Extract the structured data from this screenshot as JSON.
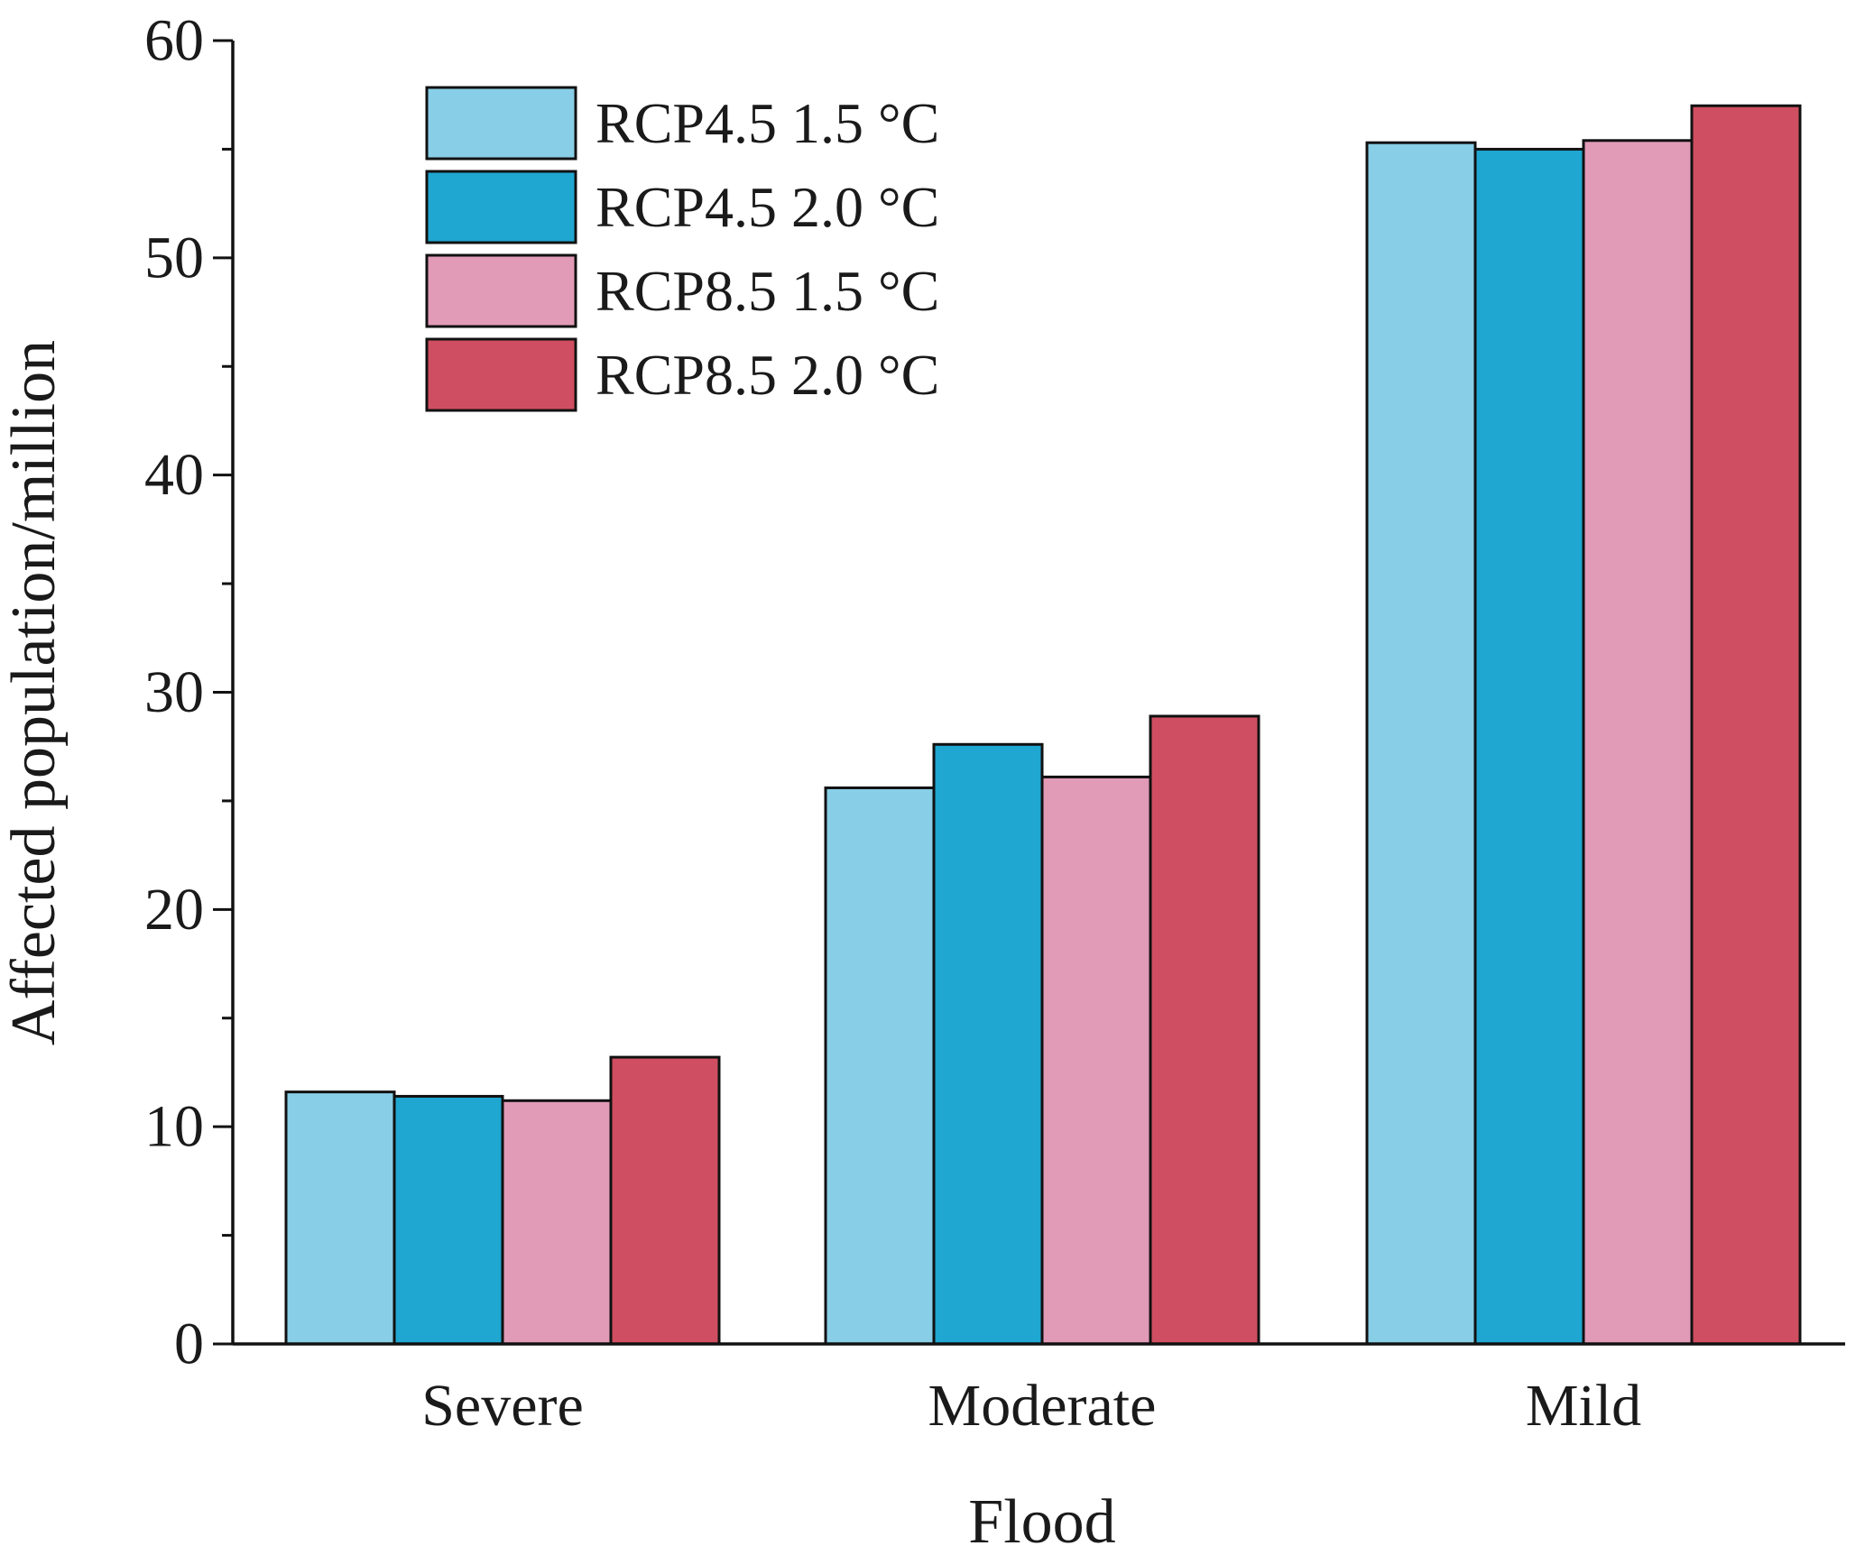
{
  "chart_data": {
    "type": "bar",
    "title": "",
    "xlabel": "Flood",
    "ylabel": "Affected population/million",
    "categories": [
      "Severe",
      "Moderate",
      "Mild"
    ],
    "ylim": [
      0,
      60
    ],
    "yticks": [
      0,
      10,
      20,
      30,
      40,
      50,
      60
    ],
    "yticks_minor": [
      5,
      15,
      25,
      35,
      45,
      55
    ],
    "legend_position": "top-left",
    "series": [
      {
        "name": "RCP4.5 1.5 °C",
        "color": "#88cee6",
        "values": [
          11.6,
          25.6,
          55.3
        ]
      },
      {
        "name": "RCP4.5 2.0 °C",
        "color": "#1fa6d1",
        "values": [
          11.4,
          27.6,
          55.0
        ]
      },
      {
        "name": "RCP8.5 1.5 °C",
        "color": "#e19bb7",
        "values": [
          11.2,
          26.1,
          55.4
        ]
      },
      {
        "name": "RCP8.5 2.0 °C",
        "color": "#d04e61",
        "values": [
          13.2,
          28.9,
          57.0
        ]
      }
    ]
  }
}
